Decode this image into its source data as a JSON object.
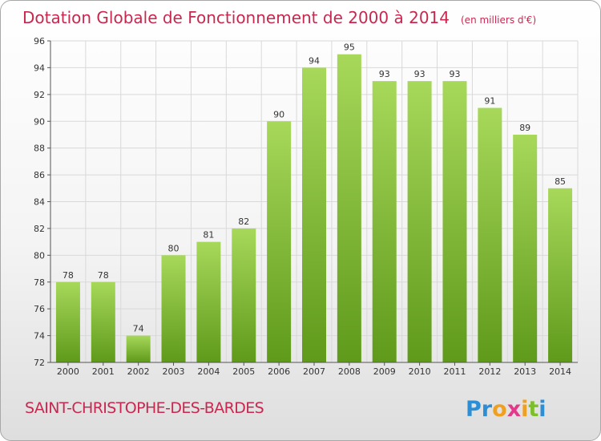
{
  "chart_data": {
    "type": "bar",
    "title": "Dotation Globale de Fonctionnement de 2000 à 2014",
    "unit": "(en milliers d'€)",
    "categories": [
      "2000",
      "2001",
      "2002",
      "2003",
      "2004",
      "2005",
      "2006",
      "2007",
      "2008",
      "2009",
      "2010",
      "2011",
      "2012",
      "2013",
      "2014"
    ],
    "values": [
      78,
      78,
      74,
      80,
      81,
      82,
      90,
      94,
      95,
      93,
      93,
      93,
      91,
      89,
      85
    ],
    "ylim": [
      72,
      96
    ],
    "yticks": [
      72,
      74,
      76,
      78,
      80,
      82,
      84,
      86,
      88,
      90,
      92,
      94,
      96
    ],
    "grid": true,
    "xlabel": "",
    "ylabel": ""
  },
  "commune": "SAINT-CHRISTOPHE-DES-BARDES",
  "brand": {
    "text": "Proxiti",
    "letter_colors": [
      "#2c8fd6",
      "#2c8fd6",
      "#f0a020",
      "#e23a8a",
      "#f0a020",
      "#7cbf2a",
      "#2c8fd6"
    ]
  },
  "colors": {
    "title": "#c8284f",
    "bar_top": "#a7d85a",
    "bar_bottom": "#5f9a1b",
    "grid": "#d9d9d9"
  }
}
